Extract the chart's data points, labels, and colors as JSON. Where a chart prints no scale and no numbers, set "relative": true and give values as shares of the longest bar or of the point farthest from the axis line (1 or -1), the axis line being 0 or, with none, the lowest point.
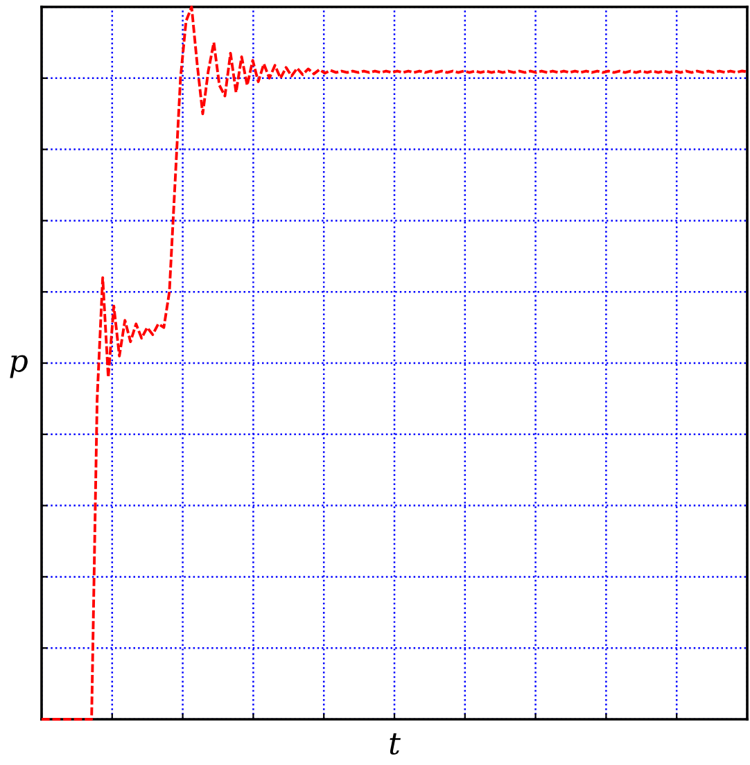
{
  "chart_data": {
    "type": "line",
    "xlabel": "t",
    "ylabel": "p",
    "relative": true,
    "grid": true,
    "tick_labels": false,
    "line_style": "dashed",
    "marker": "none",
    "categories": [
      null,
      null,
      null,
      null,
      null,
      null,
      null,
      null,
      null,
      null,
      null,
      null,
      null,
      null,
      null,
      null,
      null,
      null,
      null,
      null,
      null,
      null,
      null,
      null,
      null,
      null,
      null,
      null,
      null,
      null,
      null,
      null,
      null,
      null,
      null,
      null,
      null,
      null,
      null,
      null,
      null,
      null,
      null,
      null,
      null,
      null,
      null,
      null,
      null,
      null,
      null,
      null,
      null,
      null,
      null,
      null,
      null,
      null,
      null,
      null,
      null,
      null,
      null,
      null,
      null,
      null,
      null,
      null,
      null,
      null,
      null,
      null,
      null,
      null,
      null,
      null,
      null,
      null,
      null,
      null,
      null,
      null,
      null,
      null,
      null,
      null,
      null,
      null,
      null,
      null,
      null,
      null,
      null,
      null,
      null,
      null,
      null,
      null,
      null,
      null,
      null,
      null,
      null,
      null,
      null,
      null,
      null,
      null,
      null,
      null,
      null,
      null,
      null,
      null,
      null,
      null,
      null,
      null,
      null,
      null,
      null,
      null,
      null,
      null,
      null,
      null,
      null,
      null
    ],
    "series": [
      {
        "color": "#ff0000",
        "values": [
          0,
          0,
          0,
          0,
          0,
          0,
          0,
          0,
          0,
          0,
          0.45,
          0.62,
          0.48,
          0.58,
          0.51,
          0.56,
          0.53,
          0.555,
          0.535,
          0.55,
          0.54,
          0.555,
          0.55,
          0.6,
          0.75,
          0.9,
          0.98,
          1.0,
          0.92,
          0.85,
          0.91,
          0.95,
          0.89,
          0.875,
          0.935,
          0.88,
          0.93,
          0.89,
          0.925,
          0.895,
          0.92,
          0.9,
          0.918,
          0.9,
          0.915,
          0.903,
          0.914,
          0.905,
          0.913,
          0.906,
          0.912,
          0.907,
          0.911,
          0.908,
          0.91,
          0.908,
          0.91,
          0.908,
          0.91,
          0.908,
          0.91,
          0.908,
          0.91,
          0.908,
          0.91,
          0.908,
          0.91,
          0.908,
          0.91,
          0.908,
          0.91,
          0.908,
          0.91,
          0.908,
          0.91,
          0.908,
          0.91,
          0.908,
          0.91,
          0.908,
          0.91,
          0.908,
          0.91,
          0.908,
          0.91,
          0.908,
          0.91,
          0.908,
          0.91,
          0.908,
          0.91,
          0.908,
          0.91,
          0.908,
          0.91,
          0.908,
          0.91,
          0.908,
          0.91,
          0.908,
          0.91,
          0.908,
          0.91,
          0.908,
          0.91,
          0.908,
          0.91,
          0.908,
          0.91,
          0.908,
          0.91,
          0.908,
          0.91,
          0.908,
          0.91,
          0.908,
          0.91,
          0.908,
          0.91,
          0.908,
          0.91,
          0.908,
          0.91,
          0.908,
          0.91,
          0.908,
          0.91,
          0.909
        ]
      }
    ]
  }
}
